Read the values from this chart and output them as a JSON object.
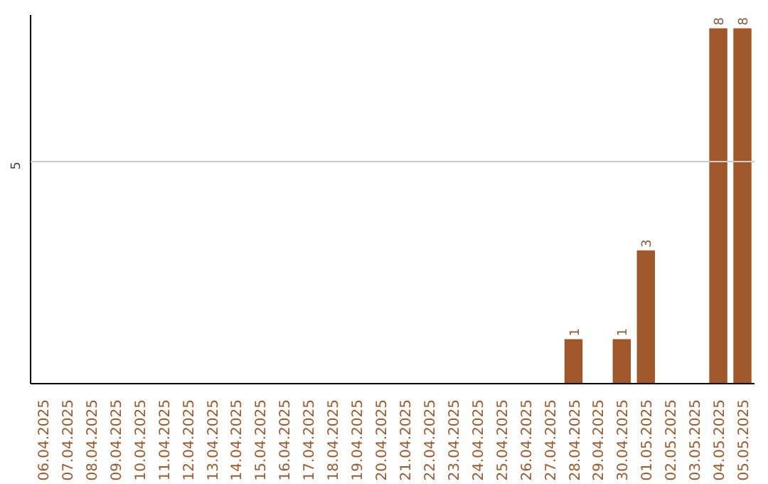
{
  "chart_data": {
    "type": "bar",
    "categories": [
      "06.04.2025",
      "07.04.2025",
      "08.04.2025",
      "09.04.2025",
      "10.04.2025",
      "11.04.2025",
      "12.04.2025",
      "13.04.2025",
      "14.04.2025",
      "15.04.2025",
      "16.04.2025",
      "17.04.2025",
      "18.04.2025",
      "19.04.2025",
      "20.04.2025",
      "21.04.2025",
      "22.04.2025",
      "23.04.2025",
      "24.04.2025",
      "25.04.2025",
      "26.04.2025",
      "27.04.2025",
      "28.04.2025",
      "29.04.2025",
      "30.04.2025",
      "01.05.2025",
      "02.05.2025",
      "03.05.2025",
      "04.05.2025",
      "05.05.2025"
    ],
    "values": [
      null,
      null,
      null,
      null,
      null,
      null,
      null,
      null,
      null,
      null,
      null,
      null,
      null,
      null,
      null,
      null,
      null,
      null,
      null,
      null,
      null,
      null,
      1,
      null,
      1,
      3,
      null,
      null,
      8,
      8
    ],
    "value_labels": [
      null,
      null,
      null,
      null,
      null,
      null,
      null,
      null,
      null,
      null,
      null,
      null,
      null,
      null,
      null,
      null,
      null,
      null,
      null,
      null,
      null,
      null,
      "1",
      null,
      "1",
      "3",
      null,
      null,
      "8",
      "8"
    ],
    "color": "#a0582a",
    "ylim": [
      0,
      8.3
    ],
    "ref_lines": [
      {
        "axis": "y",
        "value": 5,
        "label": "5",
        "color": "#cccccc"
      }
    ],
    "legend": false
  }
}
